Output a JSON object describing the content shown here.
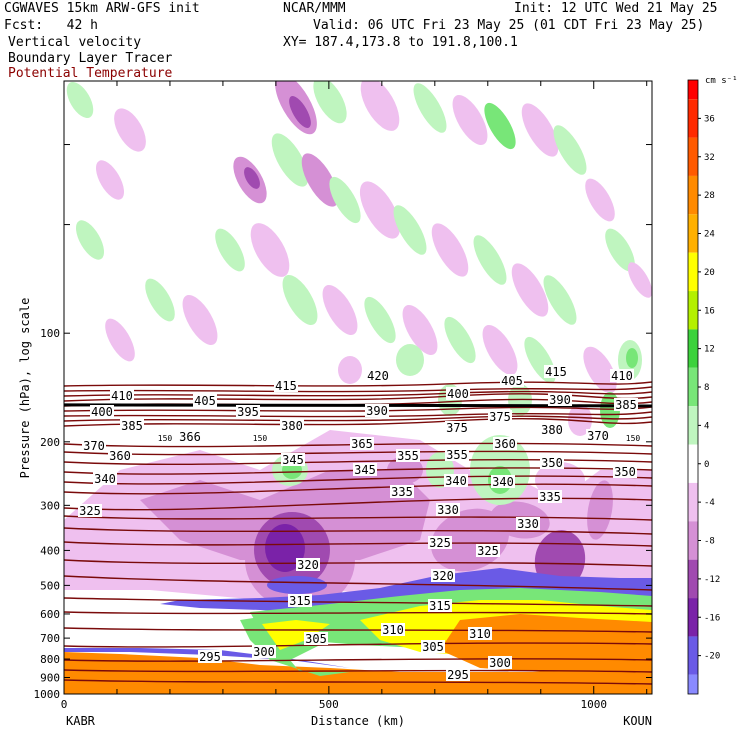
{
  "header": {
    "model": "CGWAVES 15km ARW-GFS init",
    "org": "NCAR/MMM",
    "init": "Init: 12 UTC Wed 21 May 25",
    "fcst": "Fcst:   42 h",
    "valid": "Valid: 06 UTC Fri 23 May 25 (01 CDT Fri 23 May 25)",
    "field1": "Vertical velocity",
    "field2": "Boundary Layer Tracer",
    "field3": "Potential Temperature",
    "xy": "XY= 187.4,173.8 to 191.8,100.1"
  },
  "colors": {
    "potential_temperature": "#7a0a0a",
    "pbl_line": "#000000",
    "field3_text": "#8b0000"
  },
  "chart_data": {
    "type": "heatmap",
    "title": "",
    "xlabel": "Distance (km)",
    "ylabel": "Pressure (hPa), log scale",
    "xlim": [
      0,
      1110
    ],
    "ylim": [
      1000,
      20
    ],
    "y_scale": "log",
    "x_ticks": [
      0,
      500,
      1000
    ],
    "x_tick_labels": [
      "0",
      "500",
      "1000"
    ],
    "y_ticks": [
      100,
      200,
      300,
      400,
      500,
      600,
      700,
      800,
      900,
      1000
    ],
    "y_tick_labels": [
      "100",
      "200",
      "300",
      "400",
      "500",
      "600",
      "700",
      "800",
      "900",
      "1000"
    ],
    "endpoints": {
      "left": "KABR",
      "right": "KOUN"
    },
    "colorbar": {
      "units": "cm s⁻¹",
      "labels": [
        36,
        32,
        28,
        24,
        20,
        16,
        12,
        8,
        4,
        0,
        -4,
        -8,
        -12,
        -16,
        -20
      ],
      "bands": [
        {
          "from": 40,
          "to": 38,
          "color": "#ff0000"
        },
        {
          "from": 38,
          "to": 34,
          "color": "#ff2a00"
        },
        {
          "from": 34,
          "to": 30,
          "color": "#ff5a00"
        },
        {
          "from": 30,
          "to": 26,
          "color": "#ff8a00"
        },
        {
          "from": 26,
          "to": 22,
          "color": "#ffb000"
        },
        {
          "from": 22,
          "to": 18,
          "color": "#ffff00"
        },
        {
          "from": 18,
          "to": 14,
          "color": "#b4f000"
        },
        {
          "from": 14,
          "to": 10,
          "color": "#3cd23c"
        },
        {
          "from": 10,
          "to": 6,
          "color": "#78e678"
        },
        {
          "from": 6,
          "to": 2,
          "color": "#bff5bf"
        },
        {
          "from": 2,
          "to": -2,
          "color": "#ffffff"
        },
        {
          "from": -2,
          "to": -6,
          "color": "#efc0ef"
        },
        {
          "from": -6,
          "to": -10,
          "color": "#d590d5"
        },
        {
          "from": -10,
          "to": -14,
          "color": "#a04ab0"
        },
        {
          "from": -14,
          "to": -18,
          "color": "#7a22a8"
        },
        {
          "from": -18,
          "to": -22,
          "color": "#6a5ae6"
        },
        {
          "from": -22,
          "to": -24,
          "color": "#8a8aff"
        }
      ]
    },
    "contour_label_values": [
      "410",
      "415",
      "420",
      "405",
      "415",
      "410",
      "400",
      "405",
      "395",
      "390",
      "400",
      "390",
      "385",
      "385",
      "375",
      "380",
      "375",
      "380",
      "370",
      "366",
      "370",
      "360",
      "150",
      "150",
      "150",
      "365",
      "360",
      "355",
      "355",
      "350",
      "350",
      "345",
      "345",
      "340",
      "340",
      "340",
      "335",
      "335",
      "330",
      "330",
      "325",
      "325",
      "325",
      "320",
      "320",
      "315",
      "315",
      "310",
      "310",
      "305",
      "305",
      "300",
      "300",
      "295",
      "295"
    ],
    "pbl_top_hPa": 158
  }
}
